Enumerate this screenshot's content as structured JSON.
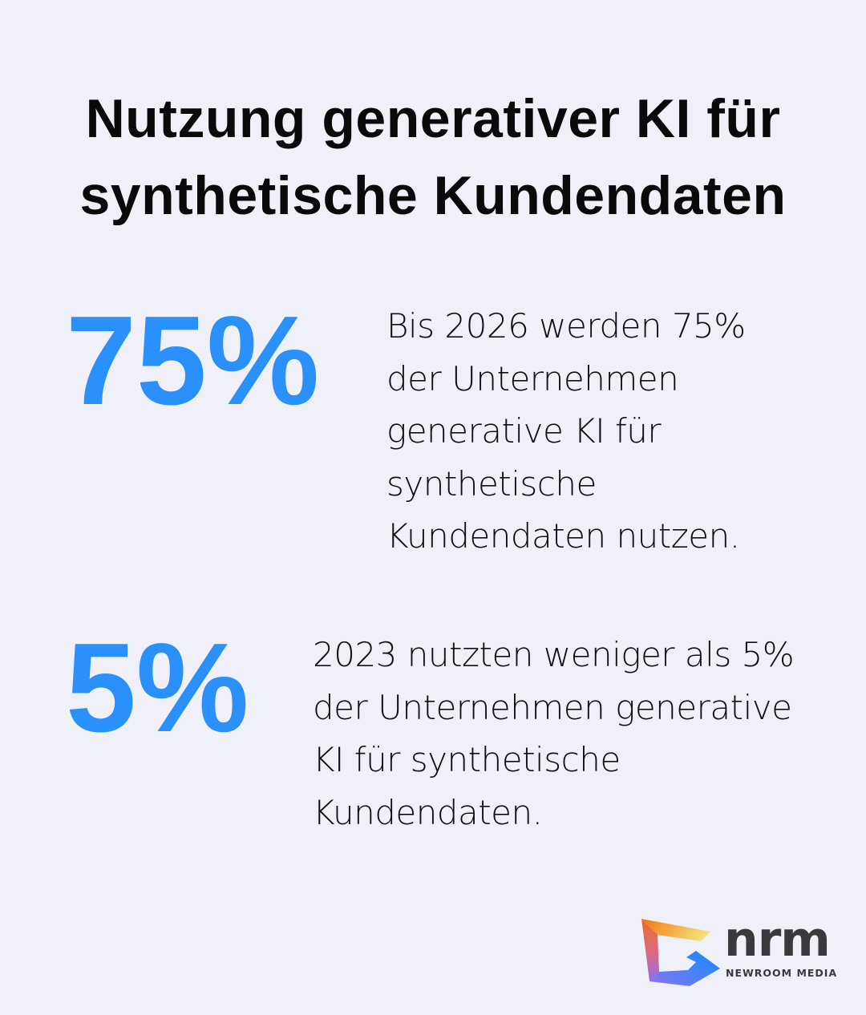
{
  "title": "Nutzung generativer KI für synthetische Kundendaten",
  "stats": [
    {
      "value": "75%",
      "text": "Bis 2026 werden 75% der Unternehmen generative KI für synthetische Kundendaten nutzen."
    },
    {
      "value": "5%",
      "text": "2023 nutzten weniger als 5% der Unternehmen generative KI für synthetische Kundendaten."
    }
  ],
  "brand": {
    "name": "nrm",
    "subtitle": "NEWROOM MEDIA"
  },
  "colors": {
    "accent": "#2a90fb",
    "background": "#f0f0f9"
  }
}
